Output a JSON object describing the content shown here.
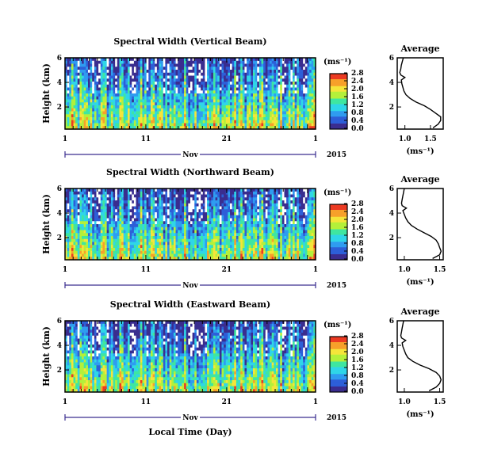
{
  "chart_data": [
    {
      "type": "heatmap",
      "title": "Spectral Width (Vertical Beam)",
      "ylabel": "Height (km)",
      "y_ticks": [
        "6",
        "4",
        "2"
      ],
      "ylim": [
        0.2,
        6
      ],
      "x_ticks": [
        "1",
        "11",
        "21",
        "1"
      ],
      "x_months": [
        "Nov"
      ],
      "year": "2015",
      "colorbar": {
        "unit": "(ms⁻¹)",
        "ticks": [
          "2.8",
          "2.4",
          "2.0",
          "1.6",
          "1.2",
          "0.8",
          "0.4",
          "0.0"
        ],
        "range": [
          0,
          2.8
        ]
      },
      "average": {
        "title": "Average",
        "x_ticks": [
          "1.0",
          "1.5"
        ],
        "xlim": [
          0.85,
          1.75
        ],
        "xlabel": "(ms⁻¹)",
        "height_km": [
          0.3,
          0.6,
          0.9,
          1.2,
          1.5,
          1.8,
          2.1,
          2.4,
          2.7,
          3.0,
          3.3,
          3.6,
          3.9,
          4.2,
          4.4,
          4.6,
          4.8,
          5.1,
          5.4,
          5.7,
          6.0
        ],
        "width_ms": [
          1.55,
          1.65,
          1.7,
          1.7,
          1.6,
          1.5,
          1.38,
          1.22,
          1.1,
          1.02,
          0.98,
          0.96,
          0.94,
          0.93,
          1.0,
          0.92,
          0.9,
          0.92,
          0.93,
          0.95,
          0.97
        ]
      }
    },
    {
      "type": "heatmap",
      "title": "Spectral Width (Northward Beam)",
      "ylabel": "Height (km)",
      "y_ticks": [
        "6",
        "4",
        "2"
      ],
      "ylim": [
        0.2,
        6
      ],
      "x_ticks": [
        "1",
        "11",
        "21",
        "1"
      ],
      "x_months": [
        "Nov"
      ],
      "year": "2015",
      "colorbar": {
        "unit": "(ms⁻¹)",
        "ticks": [
          "2.8",
          "2.4",
          "2.0",
          "1.6",
          "1.2",
          "0.8",
          "0.4",
          "0.0"
        ],
        "range": [
          0,
          2.8
        ]
      },
      "average": {
        "title": "Average",
        "x_ticks": [
          "1.0",
          "1.5"
        ],
        "xlim": [
          0.9,
          1.55
        ],
        "xlabel": "(ms⁻¹)",
        "height_km": [
          0.3,
          0.6,
          0.9,
          1.2,
          1.5,
          1.8,
          2.1,
          2.4,
          2.7,
          3.0,
          3.3,
          3.6,
          3.9,
          4.2,
          4.4,
          4.6,
          4.8,
          5.1,
          5.4,
          5.7,
          6.0
        ],
        "width_ms": [
          1.4,
          1.5,
          1.52,
          1.5,
          1.48,
          1.45,
          1.38,
          1.28,
          1.18,
          1.1,
          1.05,
          1.02,
          1.0,
          0.98,
          1.03,
          0.97,
          0.96,
          0.97,
          0.98,
          0.99,
          1.0
        ]
      }
    },
    {
      "type": "heatmap",
      "title": "Spectral Width (Eastward Beam)",
      "ylabel": "Height (km)",
      "y_ticks": [
        "6",
        "4",
        "2"
      ],
      "ylim": [
        0.2,
        6
      ],
      "x_ticks": [
        "1",
        "11",
        "21",
        "1"
      ],
      "x_months": [
        "Nov"
      ],
      "year": "2015",
      "colorbar": {
        "unit": "(ms⁻¹)",
        "ticks": [
          "2.8",
          "2.4",
          "2.0",
          "1.6",
          "1.2",
          "0.8",
          "0.4",
          "0.0"
        ],
        "range": [
          0,
          2.8
        ]
      },
      "average": {
        "title": "Average",
        "x_ticks": [
          "1.0",
          "1.5"
        ],
        "xlim": [
          0.9,
          1.55
        ],
        "xlabel": "(ms⁻¹)",
        "height_km": [
          0.3,
          0.6,
          0.9,
          1.2,
          1.5,
          1.8,
          2.1,
          2.4,
          2.7,
          3.0,
          3.3,
          3.6,
          3.9,
          4.2,
          4.4,
          4.6,
          4.8,
          5.1,
          5.4,
          5.7,
          6.0
        ],
        "width_ms": [
          1.35,
          1.45,
          1.5,
          1.52,
          1.5,
          1.45,
          1.35,
          1.22,
          1.12,
          1.05,
          1.02,
          1.0,
          0.98,
          0.97,
          1.02,
          0.96,
          0.95,
          0.96,
          0.97,
          0.98,
          0.99
        ]
      }
    }
  ],
  "shared_xlabel": "Local Time (Day)",
  "colors": {
    "scale": [
      "#3a2d8f",
      "#2d5fd8",
      "#2f9cf0",
      "#2fd6e8",
      "#3fe6a0",
      "#b4f03a",
      "#f5e53a",
      "#f7a02a",
      "#ec3a22"
    ],
    "missing": "#ffffff"
  }
}
